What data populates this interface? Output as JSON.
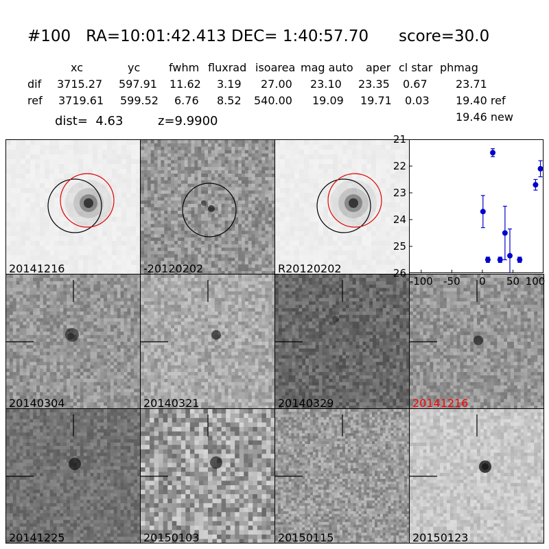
{
  "header": {
    "title": "#100   RA=10:01:42.413 DEC= 1:40:57.70      score=30.0",
    "columns": [
      "xc",
      "yc",
      "fwhm",
      "fluxrad",
      "isoarea",
      "mag auto",
      "aper",
      "cl star",
      "phmag"
    ],
    "rows": [
      {
        "label": "dif",
        "values": [
          "3715.27",
          "597.91",
          "11.62",
          "3.19",
          "27.00",
          "23.10",
          "23.35",
          "0.67",
          "23.71"
        ]
      },
      {
        "label": "ref",
        "values": [
          "3719.61",
          "599.52",
          "6.76",
          "8.52",
          "540.00",
          "19.09",
          "19.71",
          "0.03",
          "19.40 ref"
        ]
      }
    ],
    "extra_phmag": "19.46 new",
    "dist": "dist=  4.63",
    "z": "z=9.9900"
  },
  "panels": {
    "top": [
      {
        "label": "20141216",
        "label_color": "#000000"
      },
      {
        "label": "-20120202",
        "label_color": "#000000"
      },
      {
        "label": "R20120202",
        "label_color": "#000000"
      }
    ],
    "middle": [
      {
        "label": "20140304",
        "label_color": "#000000"
      },
      {
        "label": "20140321",
        "label_color": "#000000"
      },
      {
        "label": "20140329",
        "label_color": "#000000"
      },
      {
        "label": "20141216",
        "label_color": "#ff0000"
      }
    ],
    "bottom": [
      {
        "label": "20141225",
        "label_color": "#000000"
      },
      {
        "label": "20150103",
        "label_color": "#000000"
      },
      {
        "label": "20150115",
        "label_color": "#000000"
      },
      {
        "label": "20150123",
        "label_color": "#000000"
      }
    ]
  },
  "chart_data": {
    "type": "scatter",
    "xlim": [
      -120,
      100
    ],
    "ylim": [
      26,
      21
    ],
    "xticks": [
      "-100",
      "-50",
      "0",
      "50",
      "100"
    ],
    "xtick_values": [
      -100,
      -50,
      0,
      50,
      100
    ],
    "yticks": [
      "21",
      "22",
      "23",
      "24",
      "25",
      "26"
    ],
    "ytick_values": [
      21,
      22,
      23,
      24,
      25,
      26
    ],
    "series_color": "#0000cc",
    "points": [
      {
        "x": 1,
        "y": 23.7,
        "err": 0.6
      },
      {
        "x": 9,
        "y": 25.5,
        "err": 0.1
      },
      {
        "x": 17,
        "y": 21.5,
        "err": 0.15
      },
      {
        "x": 29,
        "y": 25.5,
        "err": 0.1
      },
      {
        "x": 37,
        "y": 24.5,
        "err": 1.0
      },
      {
        "x": 45,
        "y": 25.35,
        "err": 1.0
      },
      {
        "x": 61,
        "y": 25.5,
        "err": 0.1
      },
      {
        "x": 87,
        "y": 22.7,
        "err": 0.2
      },
      {
        "x": 95,
        "y": 22.1,
        "err": 0.3
      }
    ]
  }
}
